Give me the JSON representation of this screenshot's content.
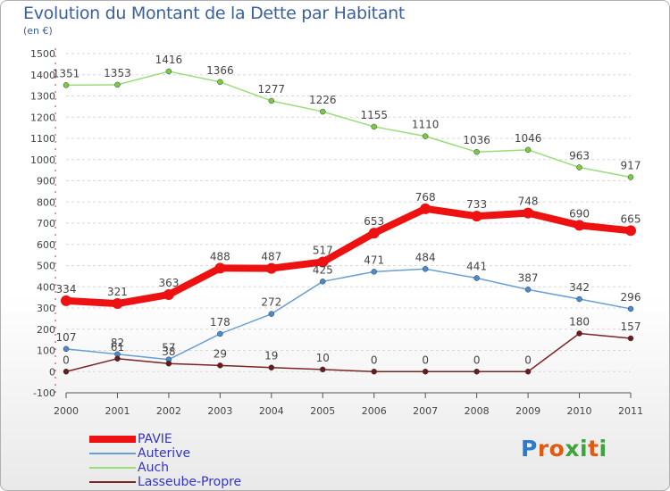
{
  "title": "Evolution du Montant de la Dette par Habitant",
  "subtitle": "(en €)",
  "logo": {
    "text": "Proxiti",
    "colors": [
      "#2a7bd0",
      "#e05a10",
      "#e05a10",
      "#3aa53a",
      "#3aa53a",
      "#e05a10",
      "#3aa53a"
    ]
  },
  "chart_data": {
    "type": "line",
    "x": [
      "2000",
      "2001",
      "2002",
      "2003",
      "2004",
      "2005",
      "2006",
      "2007",
      "2008",
      "2009",
      "2010",
      "2011"
    ],
    "y_ticks": [
      "-100",
      "0",
      "100",
      "200",
      "300",
      "400",
      "500",
      "600",
      "700",
      "800",
      "900",
      "1000",
      "1100",
      "1200",
      "1300",
      "1400",
      "1500"
    ],
    "ylim": [
      -100,
      1500
    ],
    "grid": true,
    "legend_position": "bottom-left",
    "series": [
      {
        "name": "PAVIE",
        "color": "#ee1111",
        "marker": "#ee1111",
        "values": [
          334,
          321,
          363,
          488,
          487,
          517,
          653,
          768,
          733,
          748,
          690,
          665
        ],
        "labels": [
          "334",
          "321",
          "363",
          "488",
          "487",
          "517",
          "653",
          "768",
          "733",
          "748",
          "690",
          "665"
        ]
      },
      {
        "name": "Auterive",
        "color": "#6a9fd4",
        "marker": "#4a8ad0",
        "values": [
          107,
          82,
          57,
          178,
          272,
          425,
          471,
          484,
          441,
          387,
          342,
          296
        ],
        "labels": [
          "107",
          "82",
          "57",
          "178",
          "272",
          "425",
          "471",
          "484",
          "441",
          "387",
          "342",
          "296"
        ]
      },
      {
        "name": "Auch",
        "color": "#99dd77",
        "marker": "#7acc44",
        "values": [
          1351,
          1353,
          1416,
          1366,
          1277,
          1226,
          1155,
          1110,
          1036,
          1046,
          963,
          917
        ],
        "labels": [
          "1351",
          "1353",
          "1416",
          "1366",
          "1277",
          "1226",
          "1155",
          "1110",
          "1036",
          "1046",
          "963",
          "917"
        ]
      },
      {
        "name": "Lasseube-Propre",
        "color": "#7a2424",
        "marker": "#6a1a1a",
        "values": [
          0,
          61,
          38,
          29,
          19,
          10,
          0,
          0,
          0,
          0,
          180,
          157
        ],
        "labels": [
          "0",
          "61",
          "38",
          "29",
          "19",
          "10",
          "0",
          "0",
          "0",
          "0",
          "180",
          "157"
        ]
      }
    ]
  }
}
